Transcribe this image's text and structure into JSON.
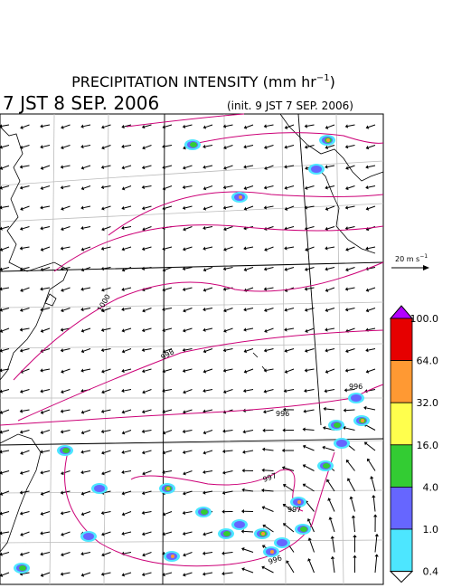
{
  "title": {
    "text": "PRECIPITATION INTENSITY (mm hr",
    "sup": "−1",
    "end": ")"
  },
  "valid_time": "7 JST 8 SEP. 2006",
  "init_time": "(init. 9 JST 7 SEP. 2006)",
  "wind_scale": {
    "text": "20 m s",
    "sup": "−1"
  },
  "colorbar": {
    "labels": [
      "100.0",
      "64.0",
      "32.0",
      "16.0",
      "4.0",
      "1.0",
      "0.4"
    ],
    "colors": [
      "#e60000",
      "#ff9933",
      "#ffff4d",
      "#33cc33",
      "#6666ff",
      "#4de6ff"
    ],
    "over_color": "#b300ff",
    "under_color": "#ffffff"
  },
  "contour_labels": [
    "1000",
    "998",
    "996",
    "997",
    "997",
    "996",
    "996"
  ]
}
